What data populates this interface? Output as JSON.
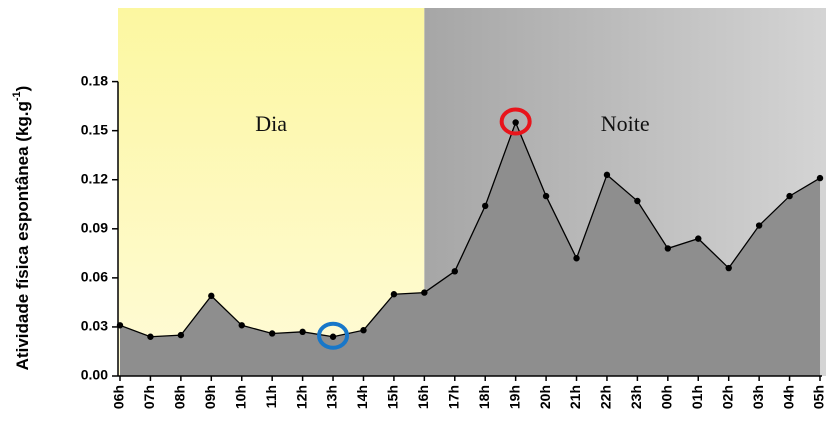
{
  "chart_data": {
    "type": "line",
    "y_label": [
      "Atividade física espontânea (kg.g",
      "-1",
      ")"
    ],
    "categories": [
      "06h",
      "07h",
      "08h",
      "09h",
      "10h",
      "11h",
      "12h",
      "13h",
      "14h",
      "15h",
      "16h",
      "17h",
      "18h",
      "19h",
      "20h",
      "21h",
      "22h",
      "23h",
      "00h",
      "01h",
      "02h",
      "03h",
      "04h",
      "05h"
    ],
    "values": [
      0.031,
      0.024,
      0.025,
      0.049,
      0.031,
      0.026,
      0.027,
      0.024,
      0.028,
      0.05,
      0.051,
      0.064,
      0.104,
      0.155,
      0.11,
      0.072,
      0.123,
      0.107,
      0.078,
      0.084,
      0.066,
      0.092,
      0.11,
      0.121
    ],
    "color": "#000000",
    "area_color": "#8e8e8e",
    "ylim": [
      0,
      0.225
    ],
    "yticks": [
      {
        "value": 0,
        "label": "0.00"
      },
      0.03,
      0.06,
      0.09,
      0.12,
      0.15,
      0.18
    ],
    "regions": [
      {
        "label": "Dia",
        "from": "06h",
        "to": "16h",
        "colors": [
          "#fcf7a0",
          "#fffbd8"
        ]
      },
      {
        "label": "Noite",
        "from": "16h",
        "to": "05h",
        "colors": [
          "#a6a6a6",
          "#d4d4d4"
        ]
      }
    ],
    "highlights": [
      {
        "category": "13h",
        "color": "#1877c9"
      },
      {
        "category": "19h",
        "color": "#e8141b"
      }
    ]
  }
}
